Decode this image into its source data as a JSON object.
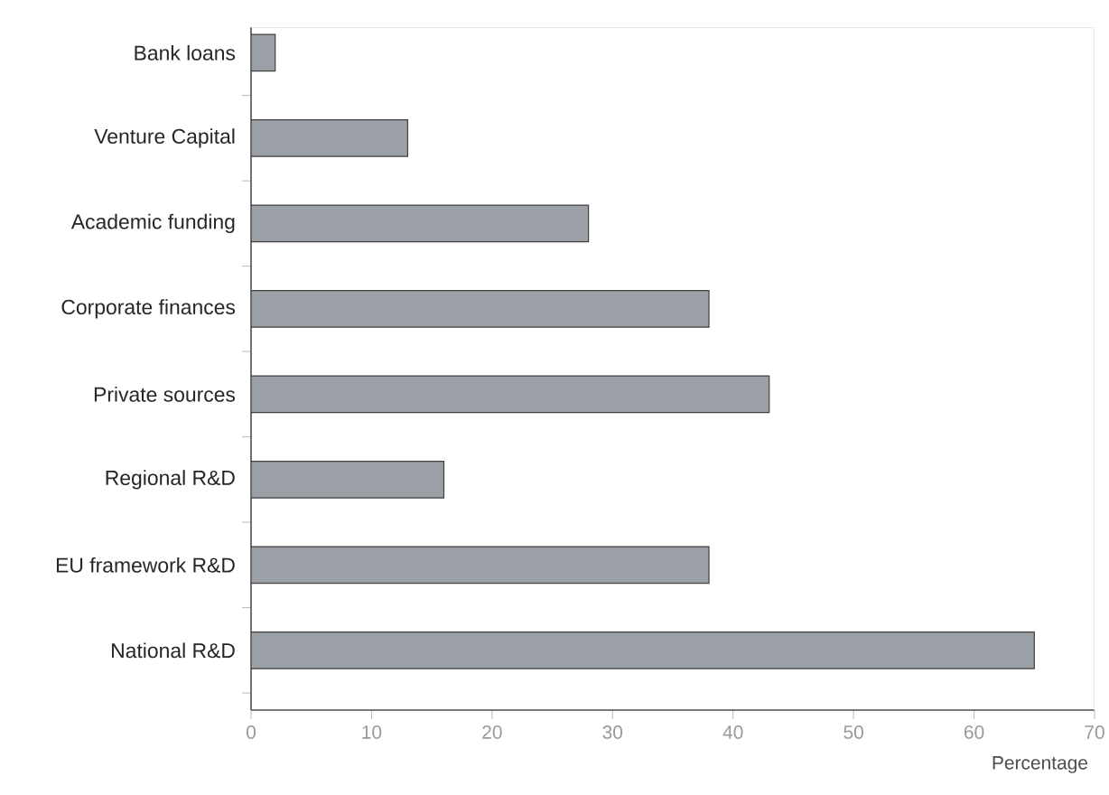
{
  "chart_data": {
    "type": "bar",
    "orientation": "horizontal",
    "categories": [
      "Bank loans",
      "Venture Capital",
      "Academic funding",
      "Corporate finances",
      "Private sources",
      "Regional R&D",
      "EU framework R&D",
      "National R&D"
    ],
    "values": [
      2,
      13,
      28,
      38,
      43,
      16,
      38,
      65
    ],
    "color": "#9aa0a6",
    "xlim": [
      0,
      70
    ],
    "xticks": [
      0,
      10,
      20,
      30,
      40,
      50,
      60,
      70
    ],
    "xlabel": "Percentage"
  }
}
